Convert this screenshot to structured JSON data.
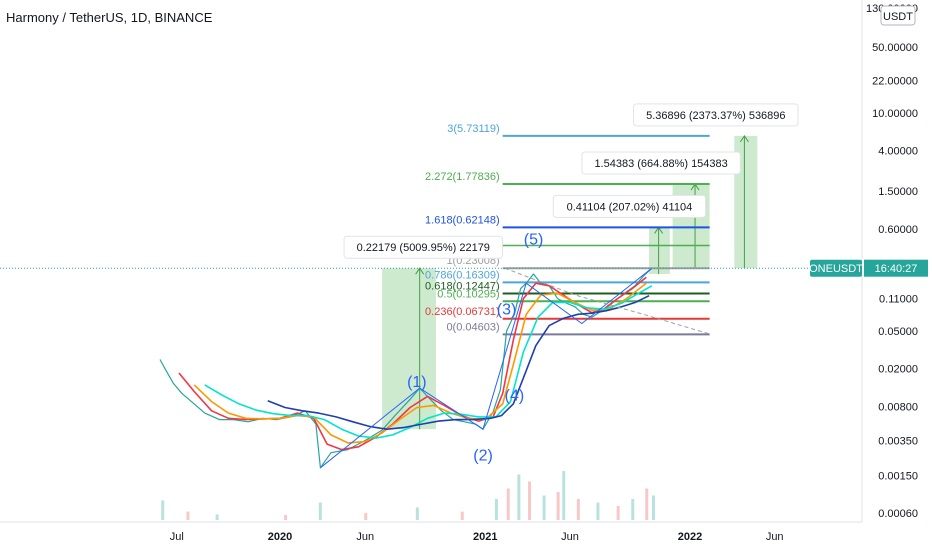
{
  "header": {
    "title": "Harmony / TetherUS, 1D, BINANCE"
  },
  "axis": {
    "currency_label": "USDT",
    "y_ticks": [
      {
        "label": "130.00000",
        "value": 130
      },
      {
        "label": "50.00000",
        "value": 50
      },
      {
        "label": "22.00000",
        "value": 22
      },
      {
        "label": "10.00000",
        "value": 10
      },
      {
        "label": "4.00000",
        "value": 4
      },
      {
        "label": "1.50000",
        "value": 1.5
      },
      {
        "label": "0.60000",
        "value": 0.6
      },
      {
        "label": "0.11000",
        "value": 0.11
      },
      {
        "label": "0.05000",
        "value": 0.05
      },
      {
        "label": "0.02000",
        "value": 0.02
      },
      {
        "label": "0.00800",
        "value": 0.008
      },
      {
        "label": "0.00350",
        "value": 0.0035
      },
      {
        "label": "0.00150",
        "value": 0.0015
      },
      {
        "label": "0.00060",
        "value": 0.0006
      }
    ],
    "x_ticks": [
      {
        "label": "Jul",
        "date": "2019-07-01",
        "bold": false
      },
      {
        "label": "2020",
        "date": "2020-01-01",
        "bold": true
      },
      {
        "label": "Jun",
        "date": "2020-06-01",
        "bold": false
      },
      {
        "label": "2021",
        "date": "2021-01-01",
        "bold": true
      },
      {
        "label": "Jun",
        "date": "2021-06-01",
        "bold": false
      },
      {
        "label": "2022",
        "date": "2022-01-01",
        "bold": true
      },
      {
        "label": "Jun",
        "date": "2022-06-01",
        "bold": false
      }
    ]
  },
  "price_tag": {
    "symbol": "ONEUSDT",
    "countdown": "16:40:27",
    "price": 0.23008,
    "color": "#26a69a"
  },
  "fib_levels": [
    {
      "label": "3(5.73119)",
      "value": 5.73119,
      "color": "#4ea5d9",
      "start": "2021-02-01",
      "end": "2022-02-05"
    },
    {
      "label": "2.272(1.77836)",
      "value": 1.77836,
      "color": "#4caf50",
      "start": "2021-02-01",
      "end": "2022-02-05"
    },
    {
      "label": "1.618(0.62148)",
      "value": 0.62148,
      "color": "#1e53e5",
      "start": "2021-02-01",
      "end": "2022-02-05"
    },
    {
      "label": "1(0.23008)",
      "value": 0.23008,
      "color": "#9e9e9e",
      "start": "2021-02-01",
      "end": "2022-02-05"
    },
    {
      "label": "0.786(0.16309)",
      "value": 0.16309,
      "color": "#4ea5d9",
      "start": "2021-02-01",
      "end": "2022-02-05"
    },
    {
      "label": "0.618(0.12447)",
      "value": 0.12447,
      "color": "#1b5e20",
      "start": "2021-02-01",
      "end": "2022-02-05"
    },
    {
      "label": "0.5(0.10295)",
      "value": 0.10295,
      "color": "#4caf50",
      "start": "2021-02-01",
      "end": "2022-02-05"
    },
    {
      "label": "0.236(0.06731)",
      "value": 0.06731,
      "color": "#e53935",
      "start": "2021-02-01",
      "end": "2022-02-05"
    },
    {
      "label": "0(0.04603)",
      "value": 0.04603,
      "color": "#7b7b9a",
      "start": "2021-02-01",
      "end": "2022-02-05"
    }
  ],
  "extra_levels": [
    {
      "value": 0.4,
      "color": "#4caf50",
      "start": "2021-02-01",
      "end": "2022-02-05"
    }
  ],
  "wave_labels": [
    {
      "label": "(1)",
      "date": "2020-09-01",
      "value": 0.0128
    },
    {
      "label": "(2)",
      "date": "2020-12-28",
      "value": 0.00215
    },
    {
      "label": "(3)",
      "date": "2021-02-08",
      "value": 0.075
    },
    {
      "label": "(4)",
      "date": "2021-02-22",
      "value": 0.0092
    },
    {
      "label": "(5)",
      "date": "2021-03-28",
      "value": 0.41
    }
  ],
  "measure_boxes": [
    {
      "label": "0.22179 (5009.95%) 22179",
      "start": "2020-07-01",
      "end": "2020-10-05",
      "low": 0.0046,
      "high": 0.23008,
      "tip": "2020-09-06"
    },
    {
      "label": "0.41104 (207.02%) 41104",
      "start": "2021-10-20",
      "end": "2021-11-26",
      "low": 0.2,
      "high": 0.62,
      "tip": "2021-11-06"
    },
    {
      "label": "1.54383 (664.88%) 154383",
      "start": "2021-12-01",
      "end": "2022-02-05",
      "low": 0.23008,
      "high": 1.77836,
      "tip": "2022-01-10"
    },
    {
      "label": "5.36896 (2373.37%) 536896",
      "start": "2022-03-21",
      "end": "2022-05-01",
      "low": 0.23008,
      "high": 5.73119,
      "tip": "2022-04-08"
    }
  ],
  "chart_data": {
    "type": "line",
    "title": "Harmony / TetherUS, 1D, BINANCE",
    "y_scale": "log",
    "ylim": [
      0.0006,
      130
    ],
    "xlim": [
      "2019-05-20",
      "2022-09-01"
    ],
    "legend": "none",
    "grid": false,
    "series": [
      {
        "values_key": "price",
        "color": "#26a69a",
        "x": [
          "2019-06-01",
          "2019-06-10",
          "2019-06-25",
          "2019-07-10",
          "2019-08-01",
          "2019-08-20",
          "2019-09-15",
          "2019-10-10",
          "2019-11-05",
          "2019-12-01",
          "2019-12-25",
          "2020-01-20",
          "2020-02-15",
          "2020-03-05",
          "2020-03-13",
          "2020-04-01",
          "2020-05-01",
          "2020-06-01",
          "2020-07-01",
          "2020-07-25",
          "2020-08-20",
          "2020-09-06",
          "2020-09-25",
          "2020-10-15",
          "2020-11-05",
          "2020-11-25",
          "2020-12-15",
          "2020-12-28",
          "2021-01-15",
          "2021-01-28",
          "2021-02-08",
          "2021-02-22",
          "2021-03-05",
          "2021-03-15",
          "2021-03-28",
          "2021-04-10",
          "2021-04-25",
          "2021-05-10",
          "2021-05-23",
          "2021-06-10",
          "2021-06-25",
          "2021-07-10",
          "2021-07-25",
          "2021-08-10",
          "2021-08-25",
          "2021-09-10",
          "2021-09-25",
          "2021-10-10",
          "2021-10-25"
        ],
        "values": [
          0.025,
          0.02,
          0.014,
          0.011,
          0.0085,
          0.0068,
          0.0058,
          0.0058,
          0.0055,
          0.006,
          0.0058,
          0.0062,
          0.0072,
          0.0052,
          0.0018,
          0.0026,
          0.0028,
          0.0035,
          0.0045,
          0.0065,
          0.0095,
          0.0125,
          0.0095,
          0.0072,
          0.0058,
          0.0055,
          0.0052,
          0.0046,
          0.007,
          0.012,
          0.05,
          0.075,
          0.14,
          0.16,
          0.2,
          0.16,
          0.15,
          0.11,
          0.1,
          0.09,
          0.075,
          0.07,
          0.08,
          0.095,
          0.11,
          0.13,
          0.15,
          0.19,
          0.23
        ]
      },
      {
        "color": "#f23645",
        "x": [
          "2019-07-05",
          "2019-08-01",
          "2019-09-01",
          "2019-10-01",
          "2019-11-01",
          "2019-12-01",
          "2020-01-01",
          "2020-02-01",
          "2020-03-01",
          "2020-03-25",
          "2020-04-20",
          "2020-05-20",
          "2020-06-20",
          "2020-07-20",
          "2020-08-20",
          "2020-09-20",
          "2020-10-20",
          "2020-11-20",
          "2020-12-20",
          "2021-01-15",
          "2021-02-01",
          "2021-02-20",
          "2021-03-10",
          "2021-04-01",
          "2021-04-25",
          "2021-05-20",
          "2021-06-15",
          "2021-07-10",
          "2021-08-01",
          "2021-08-25",
          "2021-09-20",
          "2021-10-15"
        ],
        "values": [
          0.018,
          0.0115,
          0.0072,
          0.006,
          0.0058,
          0.0059,
          0.006,
          0.0068,
          0.006,
          0.0032,
          0.0028,
          0.003,
          0.0038,
          0.0052,
          0.0078,
          0.0102,
          0.0082,
          0.0064,
          0.0056,
          0.0062,
          0.011,
          0.04,
          0.11,
          0.16,
          0.15,
          0.12,
          0.095,
          0.078,
          0.085,
          0.11,
          0.14,
          0.185
        ]
      },
      {
        "color": "#ff9800",
        "x": [
          "2019-08-01",
          "2019-09-01",
          "2019-10-01",
          "2019-11-01",
          "2019-12-01",
          "2020-01-01",
          "2020-02-01",
          "2020-03-01",
          "2020-04-01",
          "2020-05-01",
          "2020-06-01",
          "2020-07-01",
          "2020-08-01",
          "2020-09-01",
          "2020-10-01",
          "2020-11-01",
          "2020-12-01",
          "2021-01-01",
          "2021-02-01",
          "2021-02-20",
          "2021-03-15",
          "2021-04-10",
          "2021-05-10",
          "2021-06-10",
          "2021-07-10",
          "2021-08-10",
          "2021-09-10",
          "2021-10-15"
        ],
        "values": [
          0.0135,
          0.009,
          0.0068,
          0.006,
          0.0059,
          0.006,
          0.0064,
          0.0062,
          0.004,
          0.0033,
          0.0034,
          0.0042,
          0.0058,
          0.0078,
          0.0082,
          0.0068,
          0.006,
          0.0058,
          0.0085,
          0.022,
          0.075,
          0.12,
          0.125,
          0.1,
          0.083,
          0.085,
          0.11,
          0.16
        ]
      },
      {
        "color": "#00e5cc",
        "x": [
          "2019-08-20",
          "2019-09-20",
          "2019-10-20",
          "2019-11-20",
          "2019-12-20",
          "2020-01-20",
          "2020-02-20",
          "2020-03-20",
          "2020-04-20",
          "2020-05-20",
          "2020-06-20",
          "2020-07-20",
          "2020-08-20",
          "2020-09-20",
          "2020-10-20",
          "2020-11-20",
          "2020-12-20",
          "2021-01-20",
          "2021-02-15",
          "2021-03-10",
          "2021-04-05",
          "2021-05-01",
          "2021-06-01",
          "2021-07-01",
          "2021-08-01",
          "2021-09-01",
          "2021-10-01",
          "2021-10-25"
        ],
        "values": [
          0.0135,
          0.0105,
          0.0085,
          0.0073,
          0.0067,
          0.0064,
          0.0064,
          0.0058,
          0.0046,
          0.0039,
          0.0037,
          0.004,
          0.0048,
          0.006,
          0.0068,
          0.0066,
          0.0062,
          0.0062,
          0.009,
          0.03,
          0.07,
          0.1,
          0.1,
          0.088,
          0.085,
          0.098,
          0.125,
          0.15
        ]
      },
      {
        "color": "#1e3fae",
        "x": [
          "2019-12-10",
          "2020-01-10",
          "2020-02-10",
          "2020-03-10",
          "2020-04-10",
          "2020-05-10",
          "2020-06-10",
          "2020-07-10",
          "2020-08-10",
          "2020-09-10",
          "2020-10-10",
          "2020-11-10",
          "2020-12-10",
          "2021-01-10",
          "2021-01-30",
          "2021-02-20",
          "2021-03-10",
          "2021-04-01",
          "2021-04-25",
          "2021-05-20",
          "2021-06-15",
          "2021-07-10",
          "2021-08-05",
          "2021-09-01",
          "2021-09-25",
          "2021-10-20"
        ],
        "values": [
          0.0092,
          0.0078,
          0.0072,
          0.0068,
          0.0062,
          0.0055,
          0.0049,
          0.0046,
          0.0048,
          0.0052,
          0.0056,
          0.0058,
          0.0058,
          0.006,
          0.0064,
          0.0085,
          0.016,
          0.035,
          0.057,
          0.068,
          0.075,
          0.077,
          0.082,
          0.09,
          0.1,
          0.118
        ]
      }
    ],
    "wave_path": {
      "x": [
        "2020-03-13",
        "2020-09-06",
        "2020-12-28",
        "2021-03-15",
        "2021-06-22",
        "2021-10-25"
      ],
      "values": [
        0.0018,
        0.0125,
        0.0046,
        0.16,
        0.06,
        0.23
      ]
    },
    "trend_line": {
      "x": [
        "2021-02-05",
        "2021-06-10",
        "2021-10-10",
        "2022-02-05"
      ],
      "values": [
        0.23008,
        0.12,
        0.075,
        0.0465
      ]
    },
    "volume": {
      "x": [
        "2019-06-05",
        "2019-07-20",
        "2019-09-10",
        "2020-01-10",
        "2020-03-12",
        "2020-06-01",
        "2020-09-01",
        "2020-11-20",
        "2021-01-20",
        "2021-02-10",
        "2021-03-01",
        "2021-03-20",
        "2021-04-15",
        "2021-05-10",
        "2021-05-20",
        "2021-06-15",
        "2021-07-20",
        "2021-08-25",
        "2021-09-20",
        "2021-10-15",
        "2021-10-27"
      ],
      "values": [
        0.28,
        0.12,
        0.08,
        0.07,
        0.25,
        0.1,
        0.18,
        0.12,
        0.3,
        0.45,
        0.65,
        0.55,
        0.35,
        0.4,
        0.7,
        0.3,
        0.25,
        0.2,
        0.3,
        0.45,
        0.35
      ]
    }
  }
}
